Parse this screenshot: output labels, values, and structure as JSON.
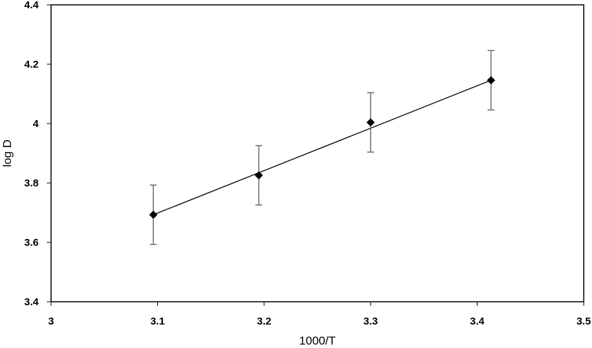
{
  "chart_data": {
    "type": "scatter",
    "title": "",
    "xlabel": "1000/T",
    "ylabel": "log D",
    "xlim": [
      3,
      3.5
    ],
    "ylim": [
      3.4,
      4.4
    ],
    "xticks": [
      3,
      3.1,
      3.2,
      3.3,
      3.4,
      3.5
    ],
    "yticks": [
      3.4,
      3.6,
      3.8,
      4,
      4.2,
      4.4
    ],
    "xtick_labels": [
      "3",
      "3.1",
      "3.2",
      "3.3",
      "3.4",
      "3.5"
    ],
    "ytick_labels": [
      "3.4",
      "3.6",
      "3.8",
      "4",
      "4.2",
      "4.4"
    ],
    "grid": false,
    "legend": "none",
    "series": [
      {
        "x": [
          3.096,
          3.195,
          3.3,
          3.413
        ],
        "y": [
          3.693,
          3.826,
          4.004,
          4.146
        ],
        "error_y": [
          0.1,
          0.1,
          0.1,
          0.1
        ],
        "marker": "diamond",
        "marker_color": "#000000",
        "errorbar_color": "#6e6e6e"
      }
    ],
    "trendline": {
      "type": "linear",
      "x": [
        3.096,
        3.413
      ],
      "y": [
        3.693,
        4.146
      ],
      "color": "#000000"
    }
  }
}
